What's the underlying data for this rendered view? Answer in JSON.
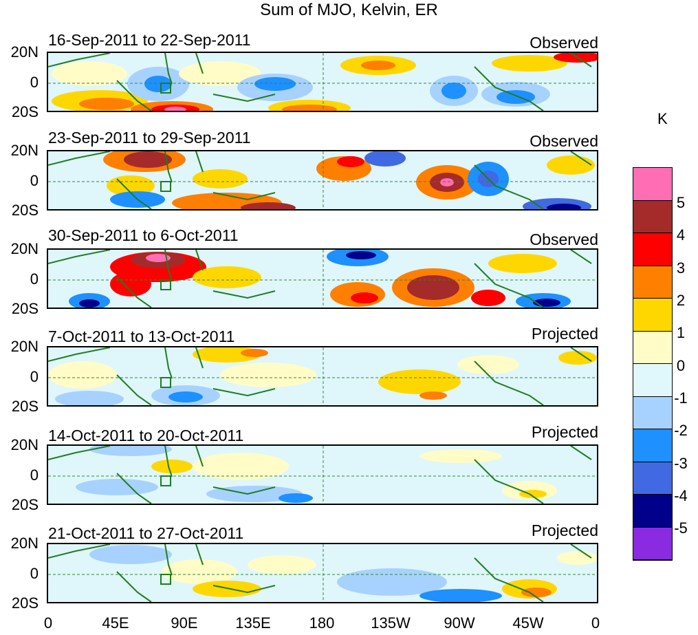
{
  "title": "Sum of MJO, Kelvin, ER",
  "panels": [
    {
      "date": "16-Sep-2011 to 22-Sep-2011",
      "status": "Observed"
    },
    {
      "date": "23-Sep-2011 to 29-Sep-2011",
      "status": "Observed"
    },
    {
      "date": "30-Sep-2011 to 6-Oct-2011",
      "status": "Observed"
    },
    {
      "date": "7-Oct-2011 to 13-Oct-2011",
      "status": "Projected"
    },
    {
      "date": "14-Oct-2011 to 20-Oct-2011",
      "status": "Projected"
    },
    {
      "date": "21-Oct-2011 to 27-Oct-2011",
      "status": "Projected"
    }
  ],
  "lat_labels": {
    "north": "20N",
    "equator": "0",
    "south": "20S"
  },
  "lon_labels": [
    "0",
    "45E",
    "90E",
    "135E",
    "180",
    "135W",
    "90W",
    "45W",
    "0"
  ],
  "colorbar": {
    "unit": "K",
    "labels": [
      "5",
      "4",
      "3",
      "2",
      "1",
      "0",
      "-1",
      "-2",
      "-3",
      "-4",
      "-5"
    ],
    "colors": [
      "#ff6eb4",
      "#a52a2a",
      "#ff0000",
      "#ff7f00",
      "#ffd700",
      "#fffcc8",
      "#e0f8fc",
      "#a7d2ff",
      "#1e90ff",
      "#4169e1",
      "#00008b",
      "#8a2be2"
    ]
  }
}
